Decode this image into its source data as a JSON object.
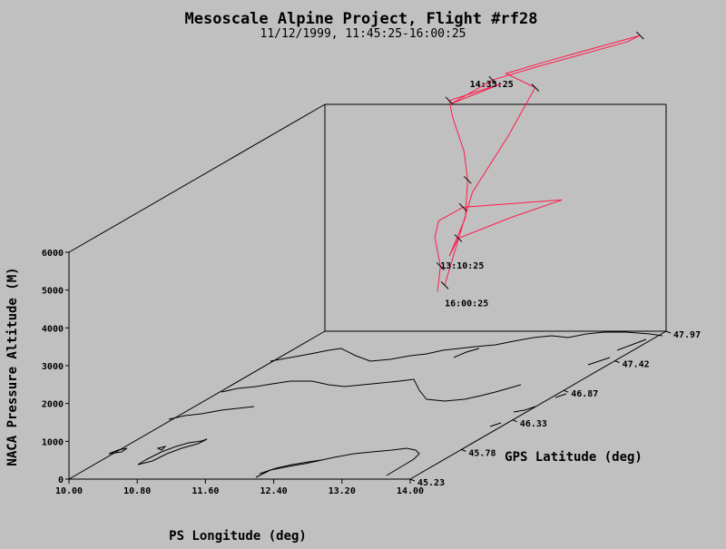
{
  "chart_data": {
    "type": "scatter",
    "title": "Mesoscale Alpine Project, Flight #rf28",
    "subtitle": "11/12/1999, 11:45:25-16:00:25",
    "xlabel": "PS Longitude (deg)",
    "ylabel": "GPS Latitude (deg)",
    "zlabel": "NACA Pressure Altitude (M)",
    "x_ticks": [
      "10.00",
      "10.80",
      "11.60",
      "12.40",
      "13.20",
      "14.00"
    ],
    "y_ticks": [
      "45.23",
      "45.78",
      "46.33",
      "46.87",
      "47.42",
      "47.97"
    ],
    "z_ticks": [
      "0",
      "1000",
      "2000",
      "3000",
      "4000",
      "5000",
      "6000"
    ],
    "xlim": [
      10.0,
      14.0
    ],
    "ylim": [
      45.23,
      47.97
    ],
    "zlim": [
      0,
      6000
    ],
    "series": [
      {
        "color": "#ff1a4a",
        "time_labels": [
          "14:35:25",
          "13:10:25",
          "16:00:25"
        ],
        "points": [
          {
            "lon": 12.82,
            "lat": 46.6,
            "alt": 3000
          },
          {
            "lon": 12.8,
            "lat": 46.65,
            "alt": 3600
          },
          {
            "lon": 12.68,
            "lat": 46.7,
            "alt": 4300
          },
          {
            "lon": 12.7,
            "lat": 46.72,
            "alt": 4700
          },
          {
            "lon": 12.9,
            "lat": 46.8,
            "alt": 4950
          },
          {
            "lon": 13.95,
            "lat": 46.9,
            "alt": 5000
          },
          {
            "lon": 13.4,
            "lat": 46.85,
            "alt": 4600
          },
          {
            "lon": 12.9,
            "lat": 46.75,
            "alt": 4200
          },
          {
            "lon": 12.85,
            "lat": 46.7,
            "alt": 3800
          },
          {
            "lon": 12.95,
            "lat": 46.78,
            "alt": 4700
          },
          {
            "lon": 12.9,
            "lat": 46.85,
            "alt": 5600
          },
          {
            "lon": 12.75,
            "lat": 46.95,
            "alt": 6200
          },
          {
            "lon": 12.45,
            "lat": 47.1,
            "alt": 6900
          },
          {
            "lon": 12.3,
            "lat": 47.2,
            "alt": 7200
          },
          {
            "lon": 12.8,
            "lat": 47.3,
            "alt": 7500
          },
          {
            "lon": 12.35,
            "lat": 47.18,
            "alt": 7150
          },
          {
            "lon": 12.7,
            "lat": 47.3,
            "alt": 7600
          },
          {
            "lon": 13.1,
            "lat": 47.4,
            "alt": 7800
          },
          {
            "lon": 14.0,
            "lat": 47.55,
            "alt": 8250
          },
          {
            "lon": 14.1,
            "lat": 47.6,
            "alt": 8350
          },
          {
            "lon": 13.2,
            "lat": 47.45,
            "alt": 7900
          },
          {
            "lon": 12.8,
            "lat": 47.35,
            "alt": 7700
          },
          {
            "lon": 13.2,
            "lat": 47.3,
            "alt": 7400
          },
          {
            "lon": 13.1,
            "lat": 47.1,
            "alt": 6400
          },
          {
            "lon": 12.9,
            "lat": 46.9,
            "alt": 5200
          },
          {
            "lon": 12.85,
            "lat": 46.65,
            "alt": 3100
          }
        ]
      }
    ]
  }
}
